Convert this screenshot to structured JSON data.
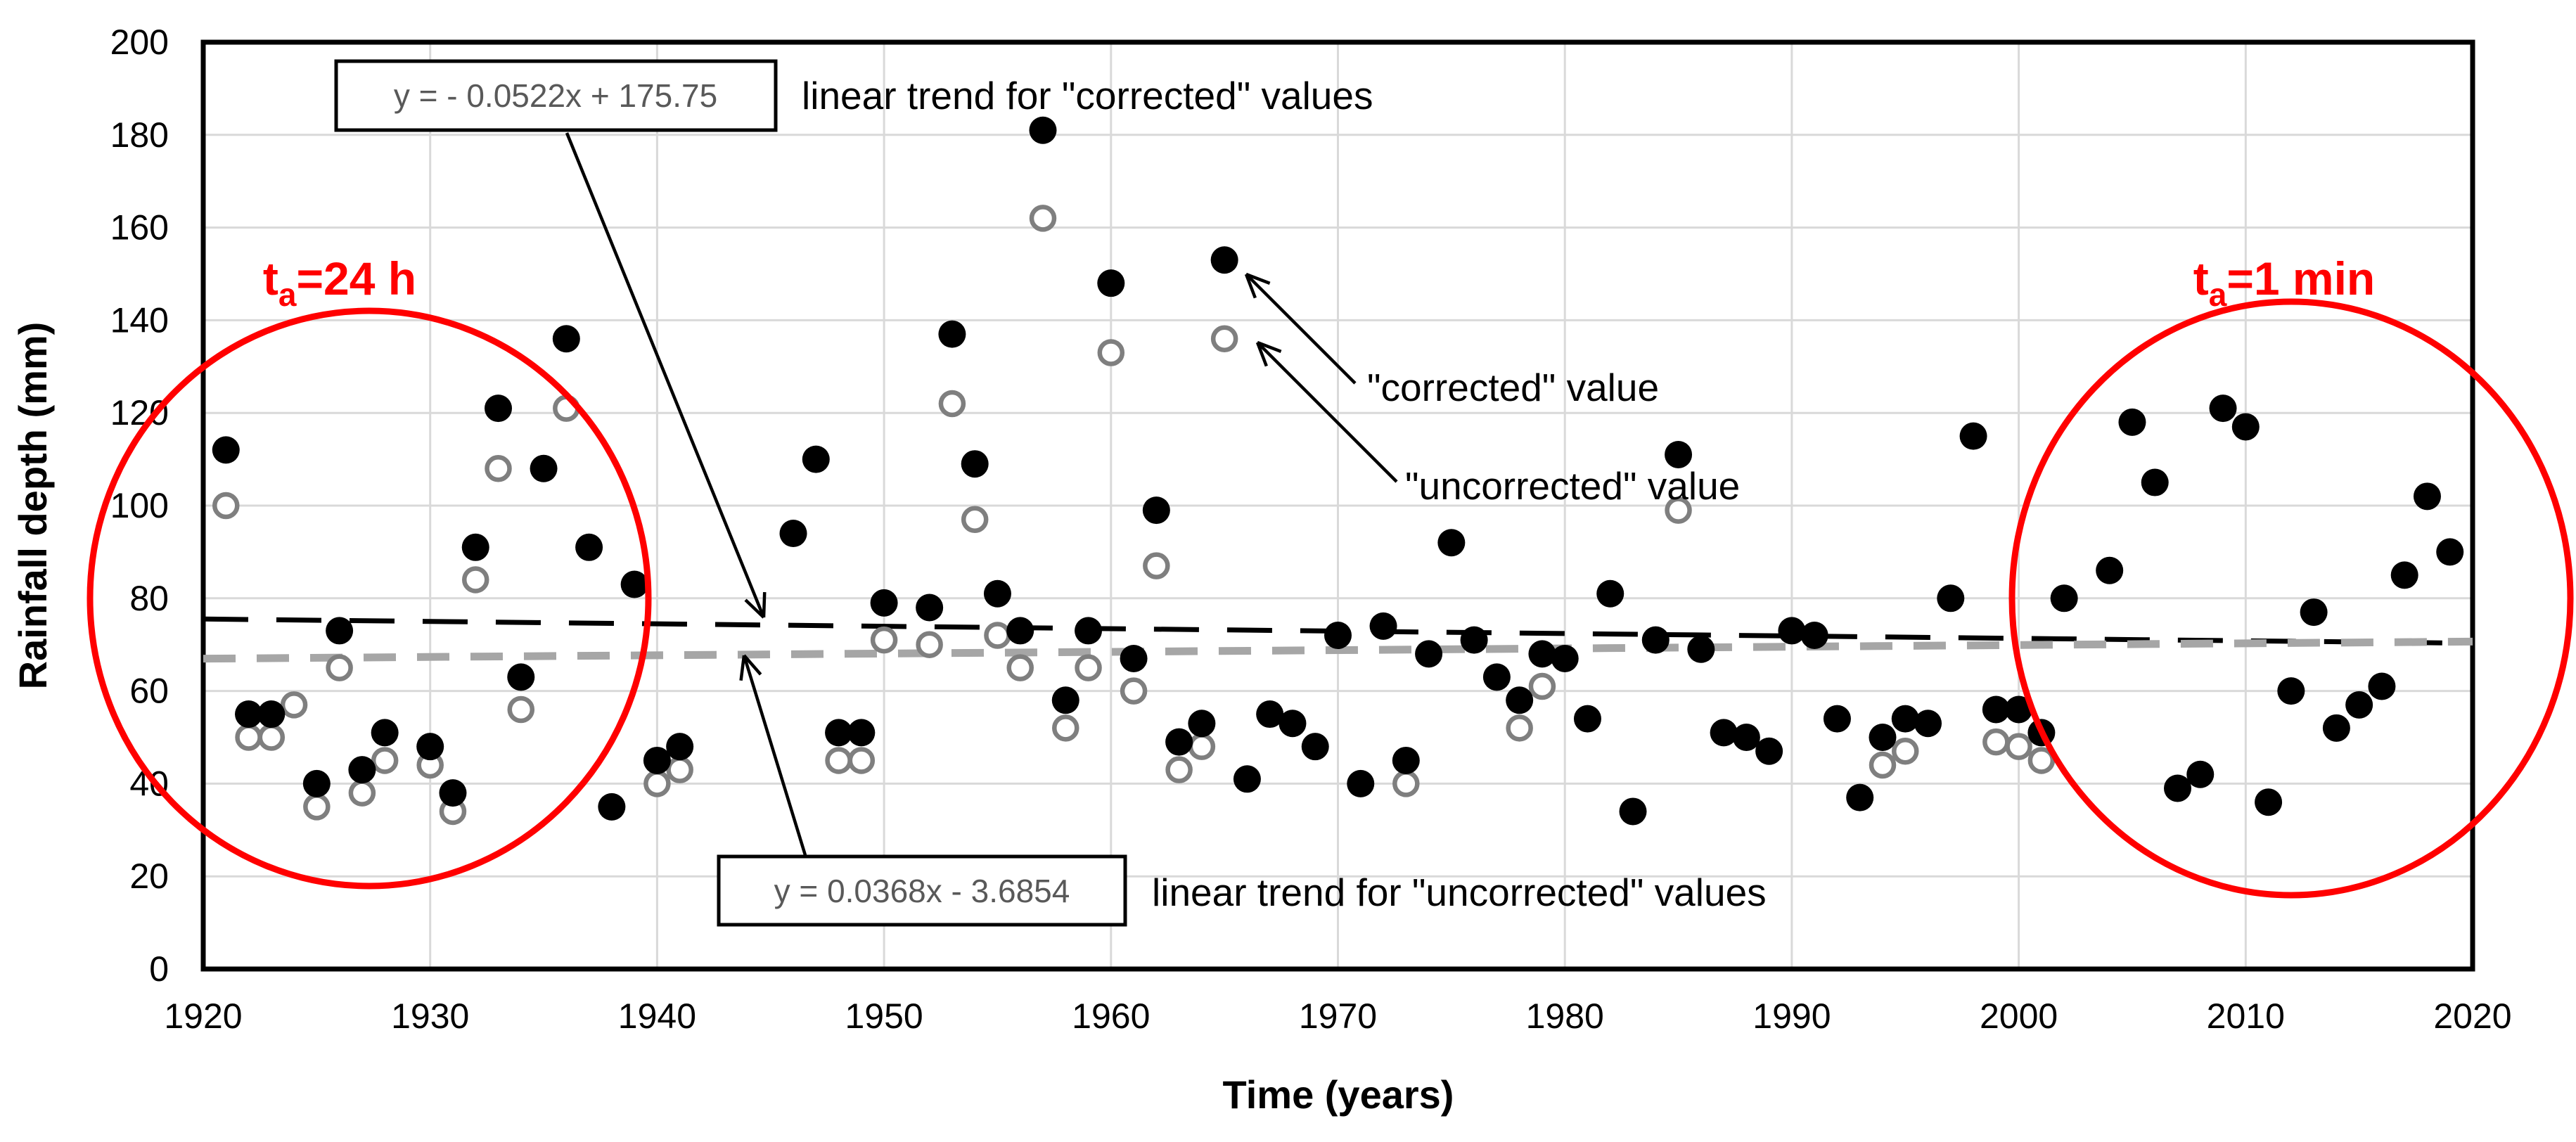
{
  "chart_data": {
    "type": "scatter",
    "xlabel": "Time (years)",
    "ylabel": "Rainfall depth (mm)",
    "xlim": [
      1920,
      2020
    ],
    "ylim": [
      0,
      200
    ],
    "xticks": [
      1920,
      1930,
      1940,
      1950,
      1960,
      1970,
      1980,
      1990,
      2000,
      2010,
      2020
    ],
    "yticks": [
      0,
      20,
      40,
      60,
      80,
      100,
      120,
      140,
      160,
      180,
      200
    ],
    "grid": true,
    "background_color": "#ffffff",
    "gridline_color": "#d9d9d9",
    "series": [
      {
        "name": "corrected",
        "marker": "filled-circle",
        "color": "#000000",
        "points": [
          [
            1921,
            112
          ],
          [
            1922,
            55
          ],
          [
            1923,
            55
          ],
          [
            1925,
            40
          ],
          [
            1926,
            73
          ],
          [
            1927,
            43
          ],
          [
            1928,
            51
          ],
          [
            1930,
            48
          ],
          [
            1931,
            38
          ],
          [
            1932,
            91
          ],
          [
            1933,
            121
          ],
          [
            1934,
            63
          ],
          [
            1935,
            108
          ],
          [
            1936,
            136
          ],
          [
            1937,
            91
          ],
          [
            1938,
            35
          ],
          [
            1939,
            83
          ],
          [
            1940,
            45
          ],
          [
            1941,
            48
          ],
          [
            1946,
            94
          ],
          [
            1947,
            110
          ],
          [
            1948,
            51
          ],
          [
            1949,
            51
          ],
          [
            1950,
            79
          ],
          [
            1952,
            78
          ],
          [
            1953,
            137
          ],
          [
            1954,
            109
          ],
          [
            1955,
            81
          ],
          [
            1956,
            73
          ],
          [
            1957,
            181
          ],
          [
            1958,
            58
          ],
          [
            1959,
            73
          ],
          [
            1960,
            148
          ],
          [
            1961,
            67
          ],
          [
            1962,
            99
          ],
          [
            1963,
            49
          ],
          [
            1964,
            53
          ],
          [
            1965,
            153
          ],
          [
            1966,
            41
          ],
          [
            1967,
            55
          ],
          [
            1968,
            53
          ],
          [
            1969,
            48
          ],
          [
            1970,
            72
          ],
          [
            1971,
            40
          ],
          [
            1972,
            74
          ],
          [
            1973,
            45
          ],
          [
            1974,
            68
          ],
          [
            1975,
            92
          ],
          [
            1976,
            71
          ],
          [
            1977,
            63
          ],
          [
            1978,
            58
          ],
          [
            1979,
            68
          ],
          [
            1980,
            67
          ],
          [
            1981,
            54
          ],
          [
            1982,
            81
          ],
          [
            1983,
            34
          ],
          [
            1984,
            71
          ],
          [
            1985,
            111
          ],
          [
            1986,
            69
          ],
          [
            1987,
            51
          ],
          [
            1988,
            50
          ],
          [
            1989,
            47
          ],
          [
            1990,
            73
          ],
          [
            1991,
            72
          ],
          [
            1992,
            54
          ],
          [
            1993,
            37
          ],
          [
            1994,
            50
          ],
          [
            1995,
            54
          ],
          [
            1996,
            53
          ],
          [
            1997,
            80
          ],
          [
            1998,
            115
          ],
          [
            1999,
            56
          ],
          [
            2000,
            56
          ],
          [
            2001,
            51
          ],
          [
            2002,
            80
          ],
          [
            2004,
            86
          ],
          [
            2005,
            118
          ],
          [
            2006,
            105
          ],
          [
            2007,
            39
          ],
          [
            2008,
            42
          ],
          [
            2009,
            121
          ],
          [
            2010,
            117
          ],
          [
            2011,
            36
          ],
          [
            2012,
            60
          ],
          [
            2013,
            77
          ],
          [
            2014,
            52
          ],
          [
            2015,
            57
          ],
          [
            2016,
            61
          ],
          [
            2017,
            85
          ],
          [
            2018,
            102
          ],
          [
            2019,
            90
          ]
        ]
      },
      {
        "name": "uncorrected",
        "marker": "open-circle",
        "color": "#7f7f7f",
        "points": [
          [
            1921,
            100
          ],
          [
            1922,
            50
          ],
          [
            1923,
            50
          ],
          [
            1924,
            57
          ],
          [
            1925,
            35
          ],
          [
            1926,
            65
          ],
          [
            1927,
            38
          ],
          [
            1928,
            45
          ],
          [
            1930,
            44
          ],
          [
            1931,
            34
          ],
          [
            1932,
            84
          ],
          [
            1933,
            108
          ],
          [
            1934,
            56
          ],
          [
            1936,
            121
          ],
          [
            1940,
            40
          ],
          [
            1941,
            43
          ],
          [
            1948,
            45
          ],
          [
            1949,
            45
          ],
          [
            1950,
            71
          ],
          [
            1952,
            70
          ],
          [
            1953,
            122
          ],
          [
            1954,
            97
          ],
          [
            1955,
            72
          ],
          [
            1956,
            65
          ],
          [
            1957,
            162
          ],
          [
            1958,
            52
          ],
          [
            1959,
            65
          ],
          [
            1960,
            133
          ],
          [
            1961,
            60
          ],
          [
            1962,
            87
          ],
          [
            1963,
            43
          ],
          [
            1964,
            48
          ],
          [
            1965,
            136
          ],
          [
            1973,
            40
          ],
          [
            1978,
            52
          ],
          [
            1979,
            61
          ],
          [
            1985,
            99
          ],
          [
            1994,
            44
          ],
          [
            1995,
            47
          ],
          [
            1999,
            49
          ],
          [
            2000,
            48
          ],
          [
            2001,
            45
          ]
        ]
      }
    ],
    "trendlines": [
      {
        "name": "corrected-trend",
        "slope": -0.0522,
        "intercept": 175.75,
        "equation": "y = - 0.0522x + 175.75",
        "label": "linear trend for  \"corrected\" values",
        "color": "#000000",
        "dash": "long"
      },
      {
        "name": "uncorrected-trend",
        "slope": 0.0368,
        "intercept": -3.6854,
        "equation": "y = 0.0368x - 3.6854",
        "label": "linear trend for  \"uncorrected\" values",
        "color": "#a6a6a6",
        "dash": "short"
      }
    ],
    "point_labels": [
      {
        "text": "\"corrected\" value",
        "target_year": 1965,
        "target_value": 153
      },
      {
        "text": "\"uncorrected\" value",
        "target_year": 1965,
        "target_value": 136
      }
    ],
    "highlights": [
      {
        "pre": "t",
        "sub": "a",
        "post": "=24 h",
        "center_year": 1927.3,
        "center_value": 80,
        "radius_years": 12.3,
        "radius_mm": 62,
        "color": "#ff0000"
      },
      {
        "pre": "t",
        "sub": "a",
        "post": "=1 min",
        "center_year": 2012.0,
        "center_value": 80,
        "radius_years": 12.3,
        "radius_mm": 64,
        "color": "#ff0000"
      }
    ]
  }
}
